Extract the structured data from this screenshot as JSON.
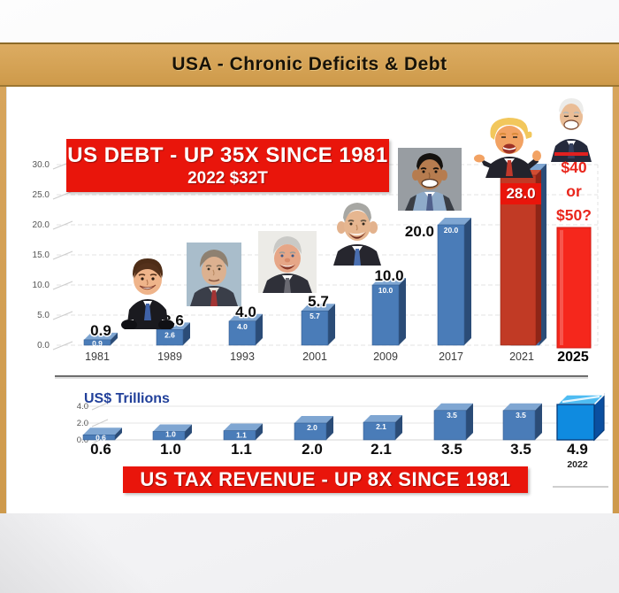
{
  "header": {
    "title": "USA - Chronic Deficits & Debt"
  },
  "debt_chart": {
    "banner_line1": "US DEBT - UP 35X SINCE 1981",
    "banner_line2": "2022 $32T",
    "special_value_label": "28.0",
    "future_line1": "$40",
    "future_line2": "or",
    "future_line3": "$50?"
  },
  "revenue_chart": {
    "ylabel": "US$ Trillions",
    "banner": "US TAX REVENUE - UP 8X SINCE 1981",
    "final_year_label": "2022"
  },
  "avatars": [
    {
      "name": "reagan-caricature",
      "over_year": "1981"
    },
    {
      "name": "bush-sr-portrait",
      "over_year": "1993"
    },
    {
      "name": "clinton-portrait",
      "over_year": "2001"
    },
    {
      "name": "bush-jr-caricature",
      "over_year": "2009"
    },
    {
      "name": "obama-portrait",
      "over_year": "2017"
    },
    {
      "name": "trump-caricature",
      "over_year": "2021"
    },
    {
      "name": "biden-caricature",
      "over_year": "2025"
    }
  ],
  "colors": {
    "header_bg": "#D2A156",
    "banner_red": "#E9150B",
    "bar_blue": "#4A7CB8",
    "bar_blue_side": "#2B4C77",
    "bar_blue_top": "#7FA6D2",
    "bar_red_2021": "#C13A25",
    "bar_red_2025": "#F5271C",
    "revenue_cube_blue": "#0F8BE0",
    "trillions_blue": "#21409A"
  },
  "chart_data": [
    {
      "type": "bar",
      "title": "US DEBT - UP 35X SINCE 1981",
      "subtitle": "2022 $32T",
      "categories": [
        "1981",
        "1989",
        "1993",
        "2001",
        "2009",
        "2017",
        "2021",
        "2025"
      ],
      "values": [
        0.9,
        2.6,
        4.0,
        5.7,
        10.0,
        20.0,
        28.0,
        null
      ],
      "bar_value_labels": [
        "0.9",
        "2.6",
        "4.0",
        "5.7",
        "10.0",
        "20.0",
        "28.0",
        "$40 or $50?"
      ],
      "in_bar_labels": [
        "0.9",
        "2.6",
        "4.0",
        "5.7",
        "10.0",
        "20.0",
        "",
        ""
      ],
      "bar_styles": [
        "blue",
        "blue",
        "blue",
        "blue",
        "blue",
        "blue",
        "red-dark",
        "red-bright"
      ],
      "y_tick_labels": [
        "0.0",
        "5.0",
        "10.0",
        "15.0",
        "20.0",
        "25.0",
        "30.0"
      ],
      "ylim": [
        0,
        30
      ],
      "xlabel": "",
      "ylabel": "",
      "legend": "none",
      "grid": "horizontal-dashed"
    },
    {
      "type": "bar",
      "title": "US TAX REVENUE - UP 8X SINCE 1981",
      "categories": [
        "",
        "",
        "",
        "",
        "",
        "",
        "",
        "2022"
      ],
      "values": [
        0.6,
        1.0,
        1.1,
        2.0,
        2.1,
        3.5,
        3.5,
        4.9
      ],
      "bar_value_labels": [
        "0.6",
        "1.0",
        "1.1",
        "2.0",
        "2.1",
        "3.5",
        "3.5",
        "4.9"
      ],
      "y_tick_labels": [
        "0.0",
        "2.0",
        "4.0"
      ],
      "ylim": [
        0,
        4
      ],
      "xlabel": "",
      "ylabel": "US$ Trillions",
      "legend": "none",
      "grid": "horizontal"
    }
  ]
}
